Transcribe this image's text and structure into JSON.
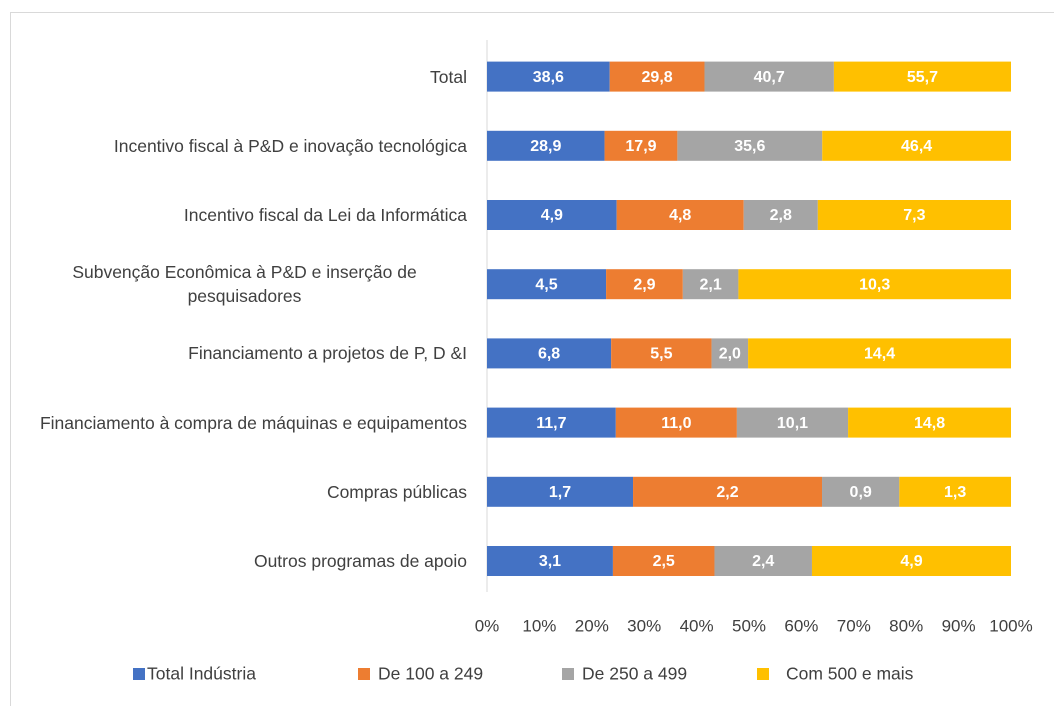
{
  "chart_data": {
    "type": "stacked-bar-100",
    "categories": [
      "Total",
      "Incentivo fiscal à P&D e inovação tecnológica",
      "Incentivo fiscal da Lei da Informática",
      "Subvenção Econômica à P&D e inserção de pesquisadores",
      "Financiamento a projetos de P, D &I",
      "Financiamento à compra de máquinas e equipamentos",
      "Compras públicas",
      "Outros programas de apoio"
    ],
    "series": [
      {
        "name": "Total Indústria",
        "color": "#4472c4",
        "values": [
          38.6,
          28.9,
          4.9,
          4.5,
          6.8,
          11.7,
          1.7,
          3.1
        ],
        "value_labels": [
          "38,6",
          "28,9",
          "4,9",
          "4,5",
          "6,8",
          "11,7",
          "1,7",
          "3,1"
        ]
      },
      {
        "name": "De 100 a 249",
        "color": "#ed7d31",
        "values": [
          29.8,
          17.9,
          4.8,
          2.9,
          5.5,
          11.0,
          2.2,
          2.5
        ],
        "value_labels": [
          "29,8",
          "17,9",
          "4,8",
          "2,9",
          "5,5",
          "11,0",
          "2,2",
          "2,5"
        ]
      },
      {
        "name": "De 250 a 499",
        "color": "#a5a5a5",
        "values": [
          40.7,
          35.6,
          2.8,
          2.1,
          2.0,
          10.1,
          0.9,
          2.4
        ],
        "value_labels": [
          "40,7",
          "35,6",
          "2,8",
          "2,1",
          "2,0",
          "10,1",
          "0,9",
          "2,4"
        ]
      },
      {
        "name": "Com 500 e mais",
        "color": "#ffc000",
        "values": [
          55.7,
          46.4,
          7.3,
          10.3,
          14.4,
          14.8,
          1.3,
          4.9
        ],
        "value_labels": [
          "55,7",
          "46,4",
          "7,3",
          "10,3",
          "14,4",
          "14,8",
          "1,3",
          "4,9"
        ]
      }
    ],
    "xlim": [
      0,
      100
    ],
    "xticks": [
      {
        "value": 0,
        "label": "0%"
      },
      {
        "value": 10,
        "label": "10%"
      },
      {
        "value": 20,
        "label": "20%"
      },
      {
        "value": 30,
        "label": "30%"
      },
      {
        "value": 40,
        "label": "40%"
      },
      {
        "value": 50,
        "label": "50%"
      },
      {
        "value": 60,
        "label": "60%"
      },
      {
        "value": 70,
        "label": "70%"
      },
      {
        "value": 80,
        "label": "80%"
      },
      {
        "value": 90,
        "label": "90%"
      },
      {
        "value": 100,
        "label": "100%"
      }
    ],
    "legend": "bottom"
  }
}
